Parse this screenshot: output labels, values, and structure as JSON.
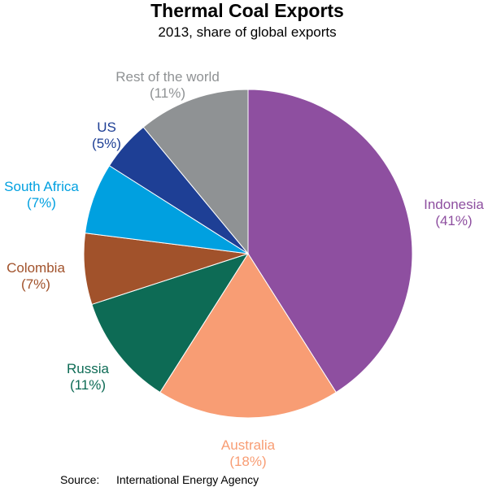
{
  "chart_data": {
    "type": "pie",
    "title": "Thermal Coal Exports",
    "subtitle": "2013, share of global exports",
    "slices": [
      {
        "name": "Indonesia",
        "value": 41,
        "label": "(41%)",
        "color": "#8e4fa0"
      },
      {
        "name": "Australia",
        "value": 18,
        "label": "(18%)",
        "color": "#f89d74"
      },
      {
        "name": "Russia",
        "value": 11,
        "label": "(11%)",
        "color": "#0d6b55"
      },
      {
        "name": "Colombia",
        "value": 7,
        "label": "(7%)",
        "color": "#a1522b"
      },
      {
        "name": "South Africa",
        "value": 7,
        "label": "(7%)",
        "color": "#00a0e0"
      },
      {
        "name": "US",
        "value": 5,
        "label": "(5%)",
        "color": "#1e3f95"
      },
      {
        "name": "Rest of the world",
        "value": 11,
        "label": "(11%)",
        "color": "#8f9294"
      }
    ]
  },
  "source": {
    "prefix": "Source:",
    "text": "International Energy Agency"
  }
}
